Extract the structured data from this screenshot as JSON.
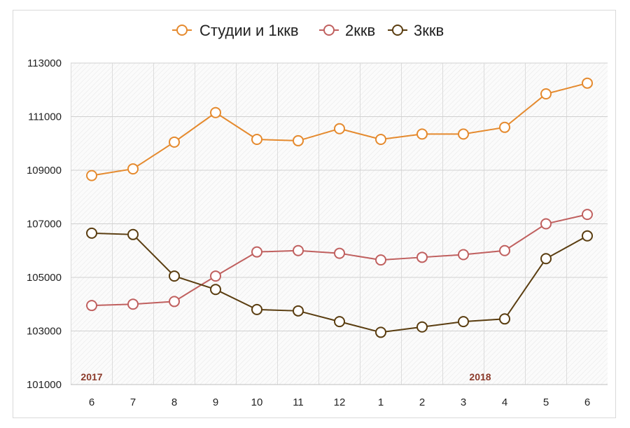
{
  "chart_data": {
    "type": "line",
    "categories": [
      "6",
      "7",
      "8",
      "9",
      "10",
      "11",
      "12",
      "1",
      "2",
      "3",
      "4",
      "5",
      "6"
    ],
    "year_labels": [
      {
        "text": "2017",
        "category_index": 0
      },
      {
        "text": "2018",
        "category_index": 9
      }
    ],
    "ylim": [
      101000,
      113000
    ],
    "yticks": [
      101000,
      103000,
      105000,
      107000,
      109000,
      111000,
      113000
    ],
    "grid": true,
    "legend": "top",
    "series": [
      {
        "name": "Студии и 1ккв",
        "color": "#e58a2e",
        "values": [
          108800,
          109050,
          110050,
          111150,
          110150,
          110100,
          110550,
          110150,
          110350,
          110350,
          110600,
          111850,
          112250
        ]
      },
      {
        "name": "2ккв",
        "color": "#c0605f",
        "values": [
          103950,
          104000,
          104100,
          105050,
          105950,
          106000,
          105900,
          105650,
          105750,
          105850,
          106000,
          107000,
          107350
        ]
      },
      {
        "name": "3ккв",
        "color": "#5a3d10",
        "values": [
          106650,
          106600,
          105050,
          104550,
          103800,
          103750,
          103350,
          102950,
          103150,
          103350,
          103450,
          105700,
          106550
        ]
      }
    ]
  }
}
